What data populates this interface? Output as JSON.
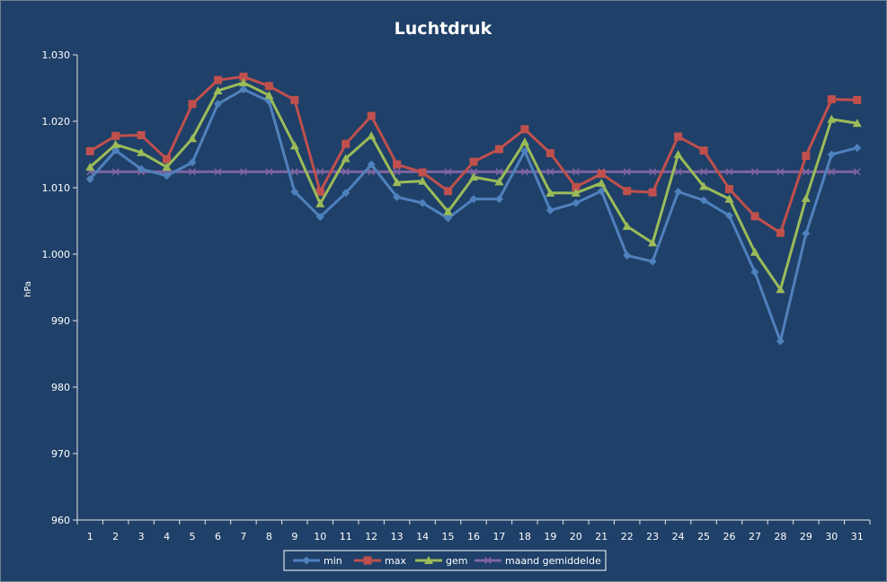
{
  "chart_data": {
    "type": "line",
    "title": "Luchtdruk",
    "ylabel": "hPa",
    "xlabel": "",
    "ylim": [
      960,
      1030
    ],
    "ytick_step": 10,
    "ytick_labels": [
      "960",
      "970",
      "980",
      "990",
      "1.000",
      "1.010",
      "1.020",
      "1.030"
    ],
    "grid": false,
    "legend_position": "bottom",
    "categories": [
      "1",
      "2",
      "3",
      "4",
      "5",
      "6",
      "7",
      "8",
      "9",
      "10",
      "11",
      "12",
      "13",
      "14",
      "15",
      "16",
      "17",
      "18",
      "19",
      "20",
      "21",
      "22",
      "23",
      "24",
      "25",
      "26",
      "27",
      "28",
      "29",
      "30",
      "31"
    ],
    "series": [
      {
        "name": "min",
        "color": "#4f81bd",
        "marker": "diamond",
        "values": [
          1011.3,
          1015.6,
          1012.8,
          1011.8,
          1013.8,
          1022.6,
          1024.8,
          1023.0,
          1009.4,
          1005.6,
          1009.2,
          1013.5,
          1008.6,
          1007.7,
          1005.4,
          1008.3,
          1008.3,
          1015.5,
          1006.6,
          1007.7,
          1009.5,
          999.8,
          998.9,
          1009.4,
          1008.1,
          1005.8,
          997.3,
          986.9,
          1003.1,
          1015.0,
          1016.0
        ]
      },
      {
        "name": "max",
        "color": "#c0504d",
        "marker": "square",
        "values": [
          1015.5,
          1017.8,
          1017.9,
          1014.3,
          1022.6,
          1026.2,
          1026.7,
          1025.3,
          1023.2,
          1009.4,
          1016.6,
          1020.8,
          1013.5,
          1012.3,
          1009.5,
          1013.9,
          1015.8,
          1018.8,
          1015.2,
          1010.1,
          1012.1,
          1009.5,
          1009.3,
          1017.7,
          1015.6,
          1009.8,
          1005.7,
          1003.2,
          1014.8,
          1023.3,
          1023.2
        ]
      },
      {
        "name": "gem",
        "color": "#9bbb59",
        "marker": "triangle",
        "values": [
          1013.1,
          1016.5,
          1015.3,
          1013.1,
          1017.4,
          1024.6,
          1025.8,
          1023.9,
          1016.3,
          1007.6,
          1014.4,
          1017.8,
          1010.8,
          1011.0,
          1006.4,
          1011.6,
          1010.9,
          1016.9,
          1009.2,
          1009.2,
          1010.7,
          1004.2,
          1001.7,
          1015.0,
          1010.2,
          1008.3,
          1000.3,
          994.7,
          1008.4,
          1020.3,
          1019.7
        ]
      },
      {
        "name": "maand gemiddelde",
        "color": "#8064a2",
        "marker": "x",
        "values": [
          1012.4,
          1012.4,
          1012.4,
          1012.4,
          1012.4,
          1012.4,
          1012.4,
          1012.4,
          1012.4,
          1012.4,
          1012.4,
          1012.4,
          1012.4,
          1012.4,
          1012.4,
          1012.4,
          1012.4,
          1012.4,
          1012.4,
          1012.4,
          1012.4,
          1012.4,
          1012.4,
          1012.4,
          1012.4,
          1012.4,
          1012.4,
          1012.4,
          1012.4,
          1012.4,
          1012.4
        ]
      }
    ]
  }
}
